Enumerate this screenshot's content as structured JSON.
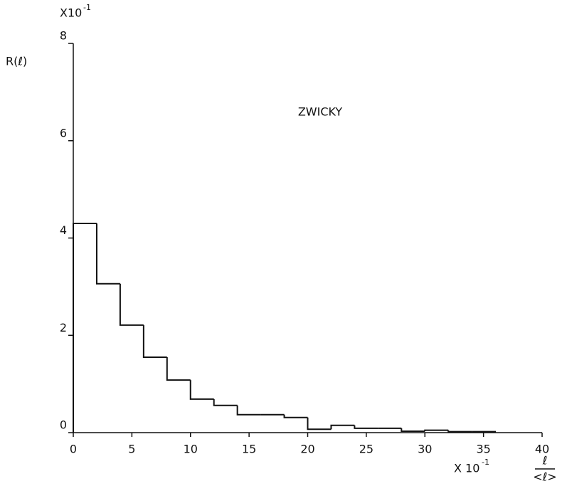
{
  "chart_data": {
    "type": "histogram",
    "annotation": "ZWICKY",
    "y_label": "R(ℓ)",
    "y_scale_label": "X10",
    "y_scale_exponent": "-1",
    "x_scale_label": "X 10",
    "x_scale_exponent": "-1",
    "x_label_numerator": "ℓ",
    "x_label_denominator": "<ℓ>",
    "bins": [
      0,
      2,
      4,
      6,
      8,
      10,
      12,
      14,
      16,
      18,
      20,
      22,
      24,
      26,
      28,
      30,
      32,
      34,
      36
    ],
    "values": [
      4.3,
      3.06,
      2.21,
      1.55,
      1.08,
      0.69,
      0.56,
      0.37,
      0.37,
      0.31,
      0.07,
      0.15,
      0.09,
      0.09,
      0.03,
      0.05,
      0.02,
      0.02
    ],
    "color": "#111111",
    "xlim": [
      0,
      40
    ],
    "xticks": [
      0,
      5,
      10,
      15,
      20,
      25,
      30,
      35,
      40
    ],
    "ylim": [
      0,
      8
    ],
    "yticks": [
      0,
      2,
      4,
      6,
      8
    ]
  }
}
